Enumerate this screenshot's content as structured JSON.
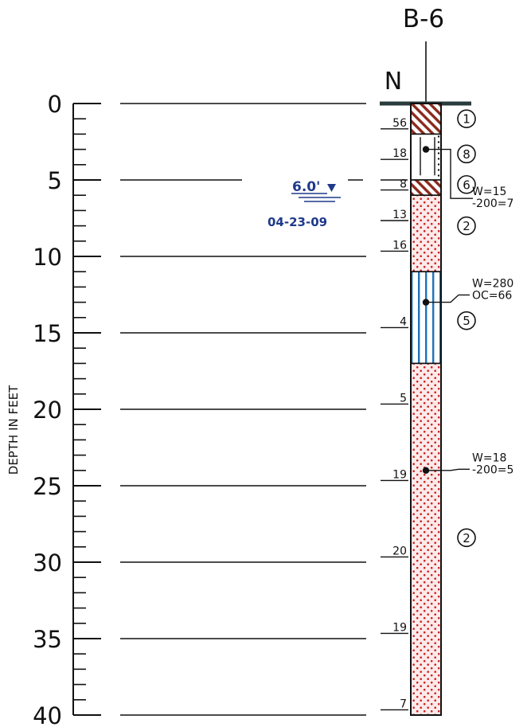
{
  "boring_id": "B-6",
  "north_label": "N",
  "axis_label": "DEPTH IN FEET",
  "depth_ticks": [
    "0",
    "5",
    "10",
    "15",
    "20",
    "25",
    "30",
    "35",
    "40"
  ],
  "water_level": {
    "depth_ft": 6.0,
    "label": "6.0'",
    "date": "04-23-09",
    "marker_depth_ft": 5.0
  },
  "layers": [
    {
      "top_ft": 0.0,
      "bottom_ft": 2.0,
      "pattern": "hatch",
      "stratum": "1"
    },
    {
      "top_ft": 2.0,
      "bottom_ft": 5.0,
      "pattern": "stipple-black",
      "stratum": "8"
    },
    {
      "top_ft": 5.0,
      "bottom_ft": 6.0,
      "pattern": "hatch",
      "stratum": "6"
    },
    {
      "top_ft": 6.0,
      "bottom_ft": 11.0,
      "pattern": "stipple-red",
      "stratum": "2"
    },
    {
      "top_ft": 11.0,
      "bottom_ft": 17.0,
      "pattern": "vertical-blue",
      "stratum": "5"
    },
    {
      "top_ft": 17.0,
      "bottom_ft": 40.0,
      "pattern": "stipple-red",
      "stratum": "2"
    }
  ],
  "stratum_labels": [
    {
      "label": "1",
      "depth_ft": 1.0
    },
    {
      "label": "8",
      "depth_ft": 3.3
    },
    {
      "label": "6",
      "depth_ft": 5.3
    },
    {
      "label": "2",
      "depth_ft": 8.0
    },
    {
      "label": "5",
      "depth_ft": 14.2
    },
    {
      "label": "2",
      "depth_ft": 28.4
    }
  ],
  "blow_counts": [
    {
      "value": "56",
      "depth_ft": 1.5
    },
    {
      "value": "18",
      "depth_ft": 3.5
    },
    {
      "value": "8",
      "depth_ft": 5.5
    },
    {
      "value": "13",
      "depth_ft": 7.5
    },
    {
      "value": "16",
      "depth_ft": 9.5
    },
    {
      "value": "4",
      "depth_ft": 14.5
    },
    {
      "value": "5",
      "depth_ft": 19.5
    },
    {
      "value": "19",
      "depth_ft": 24.5
    },
    {
      "value": "20",
      "depth_ft": 29.5
    },
    {
      "value": "19",
      "depth_ft": 34.5
    },
    {
      "value": "7",
      "depth_ft": 39.5
    }
  ],
  "lab_tests": [
    {
      "depth_ft": 3.0,
      "lines": [
        "W=15",
        "-200=7"
      ],
      "text_depth_ft": 6.0
    },
    {
      "depth_ft": 13.0,
      "lines": [
        "W=280",
        "OC=66"
      ],
      "text_depth_ft": 12.0
    },
    {
      "depth_ft": 24.0,
      "lines": [
        "W=18",
        "-200=5"
      ],
      "text_depth_ft": 23.4
    }
  ],
  "colors": {
    "line": "#000000",
    "hatch": "#8b2a1c",
    "stipple_red": "#cc2222",
    "fill_red": "#fdeaea",
    "blue": "#1e73b9",
    "water_label": "#1f3a8a",
    "ground": "#2a3b3b"
  }
}
